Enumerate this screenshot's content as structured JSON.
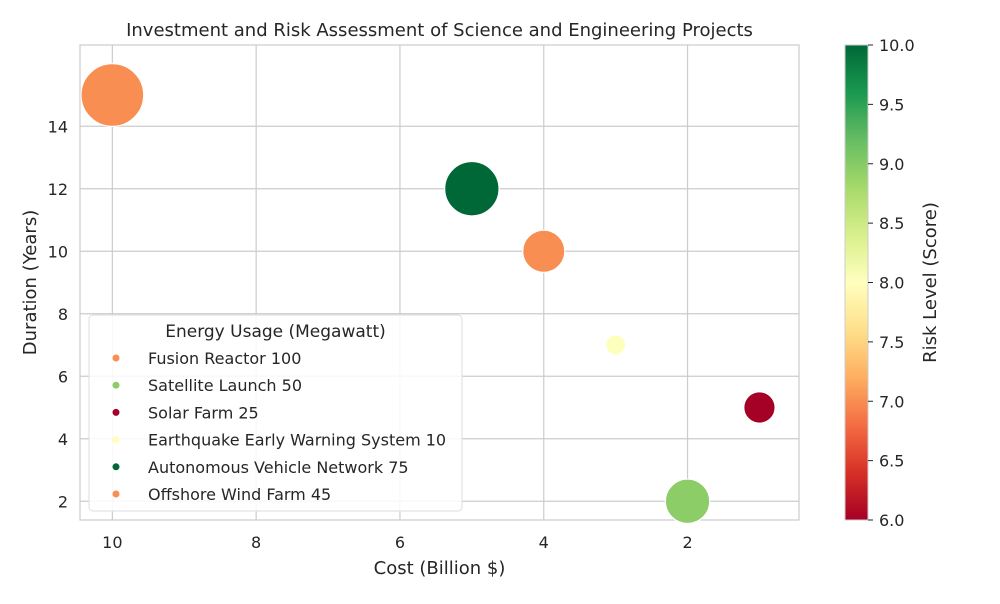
{
  "chart_data": {
    "type": "scatter",
    "title": "Investment and Risk Assessment of Science and Engineering Projects",
    "xlabel": "Cost (Billion $)",
    "ylabel": "Duration (Years)",
    "xlim": [
      10.45,
      0.45
    ],
    "ylim": [
      1.4,
      16.6
    ],
    "x_inverted": true,
    "grid": true,
    "x_ticks": [
      10,
      8,
      6,
      4,
      2
    ],
    "x_tick_labels": [
      "10",
      "8",
      "6",
      "4",
      "2"
    ],
    "y_ticks": [
      2,
      4,
      6,
      8,
      10,
      12,
      14
    ],
    "y_tick_labels": [
      "2",
      "4",
      "6",
      "8",
      "10",
      "12",
      "14"
    ],
    "colorbar": {
      "label": "Risk Level (Score)",
      "min": 6.0,
      "max": 10.0,
      "colormap": "RdYlGn",
      "ticks": [
        "6.0",
        "6.5",
        "7.0",
        "7.5",
        "8.0",
        "8.5",
        "9.0",
        "9.5",
        "10.0"
      ]
    },
    "legend": {
      "title": "Energy Usage (Megawatt)",
      "position": "lower-left"
    },
    "points": [
      {
        "label": "Fusion Reactor 100",
        "cost": 10,
        "duration": 15,
        "risk": 7,
        "energy": 100,
        "color": "#f98e52"
      },
      {
        "label": "Satellite Launch 50",
        "cost": 2,
        "duration": 2,
        "risk": 9,
        "energy": 50,
        "color": "#8ccd67"
      },
      {
        "label": "Solar Farm 25",
        "cost": 1,
        "duration": 5,
        "risk": 6,
        "energy": 25,
        "color": "#a50026"
      },
      {
        "label": "Earthquake Early Warning System 10",
        "cost": 3,
        "duration": 7,
        "risk": 8,
        "energy": 10,
        "color": "#fefebd"
      },
      {
        "label": "Autonomous Vehicle Network 75",
        "cost": 5,
        "duration": 12,
        "risk": 10,
        "energy": 75,
        "color": "#006837"
      },
      {
        "label": "Offshore Wind Farm 45",
        "cost": 4,
        "duration": 10,
        "risk": 7,
        "energy": 45,
        "color": "#f98e52"
      }
    ]
  }
}
